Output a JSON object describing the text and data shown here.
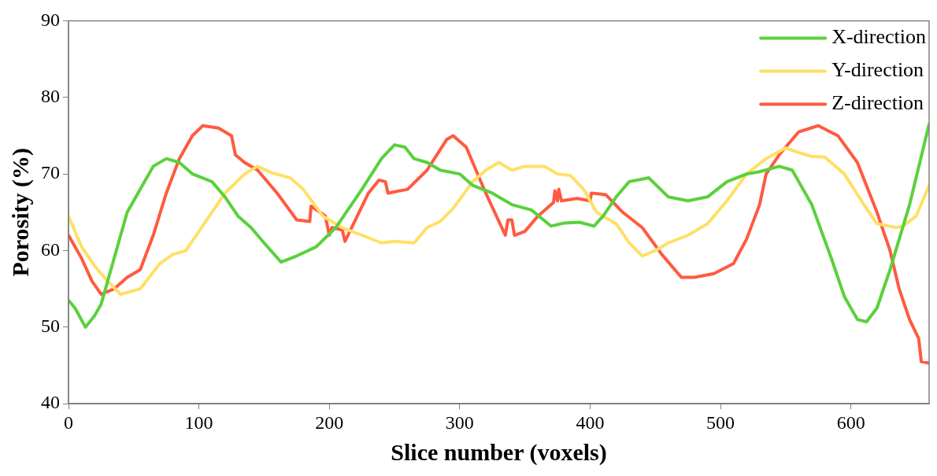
{
  "chart_data": {
    "type": "line",
    "xlabel": "Slice number (voxels)",
    "ylabel": "Porosity (%)",
    "xlim": [
      0,
      660
    ],
    "xticks": [
      0,
      100,
      200,
      300,
      400,
      500,
      600
    ],
    "ylim": [
      40,
      90
    ],
    "yticks": [
      40,
      50,
      60,
      70,
      80,
      90
    ],
    "legend": "top right",
    "line_style": "solid",
    "marker": "none",
    "series": [
      {
        "name": "X-direction",
        "color": "#5ad13c",
        "x": [
          0,
          5,
          13,
          20,
          25,
          35,
          45,
          55,
          65,
          75,
          85,
          95,
          110,
          120,
          130,
          140,
          150,
          163,
          175,
          190,
          205,
          215,
          225,
          240,
          250,
          258,
          265,
          275,
          285,
          300,
          310,
          325,
          340,
          355,
          370,
          380,
          392,
          403,
          410,
          420,
          430,
          445,
          460,
          475,
          490,
          505,
          520,
          530,
          545,
          555,
          570,
          585,
          595,
          605,
          612,
          620,
          630,
          645,
          660
        ],
        "values": [
          53.5,
          52.5,
          50,
          51.5,
          53,
          59,
          65,
          68,
          71,
          72,
          71.5,
          70,
          69,
          67,
          64.5,
          63,
          61,
          58.5,
          59.3,
          60.5,
          63,
          65.5,
          68,
          72,
          73.8,
          73.5,
          72,
          71.5,
          70.5,
          70,
          68.5,
          67.5,
          66,
          65.3,
          63.2,
          63.6,
          63.7,
          63.2,
          64.5,
          67,
          69,
          69.5,
          67,
          66.5,
          67,
          69,
          70,
          70.3,
          71,
          70.5,
          66,
          59,
          54,
          51,
          50.7,
          52.5,
          57.5,
          66,
          76.5
        ]
      },
      {
        "name": "Y-direction",
        "color": "#ffe066",
        "x": [
          0,
          10,
          20,
          30,
          40,
          55,
          70,
          80,
          90,
          100,
          110,
          120,
          135,
          145,
          155,
          170,
          180,
          195,
          210,
          225,
          240,
          250,
          265,
          275,
          285,
          295,
          310,
          320,
          330,
          340,
          350,
          365,
          375,
          385,
          395,
          405,
          420,
          430,
          440,
          450,
          460,
          475,
          490,
          505,
          520,
          535,
          550,
          560,
          570,
          580,
          595,
          610,
          620,
          635,
          640,
          650,
          660
        ],
        "values": [
          64.5,
          60.5,
          58,
          56,
          54.3,
          55,
          58.3,
          59.5,
          60,
          62.5,
          65,
          67.5,
          70,
          71,
          70.2,
          69.5,
          68,
          64.5,
          63,
          62,
          61,
          61.2,
          61,
          63,
          63.8,
          65.5,
          69,
          70.5,
          71.5,
          70.5,
          71,
          71,
          70,
          69.8,
          68,
          65,
          63.5,
          61,
          59.3,
          60,
          61,
          62,
          63.5,
          66.5,
          70,
          72,
          73.4,
          72.8,
          72.3,
          72.2,
          70,
          66,
          63.5,
          63,
          63.2,
          64.5,
          68.5
        ]
      },
      {
        "name": "Z-direction",
        "color": "#ff5a40",
        "x": [
          0,
          10,
          18,
          25,
          35,
          45,
          55,
          65,
          75,
          85,
          95,
          103,
          115,
          125,
          128,
          135,
          145,
          160,
          175,
          185,
          186,
          197,
          200,
          202,
          210,
          212,
          220,
          230,
          238,
          243,
          245,
          260,
          275,
          290,
          295,
          305,
          320,
          335,
          337,
          340,
          342,
          350,
          360,
          372,
          373,
          375,
          376,
          378,
          390,
          400,
          401,
          412,
          425,
          440,
          455,
          470,
          480,
          495,
          510,
          520,
          530,
          535,
          545,
          560,
          575,
          590,
          605,
          620,
          630,
          637,
          645,
          652,
          654,
          660
        ],
        "values": [
          62,
          59,
          56,
          54.3,
          55,
          56.5,
          57.5,
          62,
          67.5,
          72,
          75,
          76.3,
          76,
          75,
          72.5,
          71.5,
          70.5,
          67.5,
          64,
          63.8,
          65.8,
          64.5,
          62,
          63,
          62.7,
          61.2,
          64,
          67.5,
          69.2,
          69,
          67.5,
          68,
          70.5,
          74.5,
          75,
          73.5,
          67.5,
          62,
          64,
          64,
          62,
          62.5,
          64.5,
          66.3,
          67.8,
          66.5,
          68,
          66.5,
          66.8,
          66.5,
          67.5,
          67.3,
          65,
          63,
          59.5,
          56.5,
          56.5,
          57,
          58.3,
          61.5,
          66,
          70,
          72.5,
          75.5,
          76.3,
          75,
          71.5,
          65,
          60,
          55,
          51,
          48.5,
          45.5,
          45.3
        ]
      }
    ]
  }
}
